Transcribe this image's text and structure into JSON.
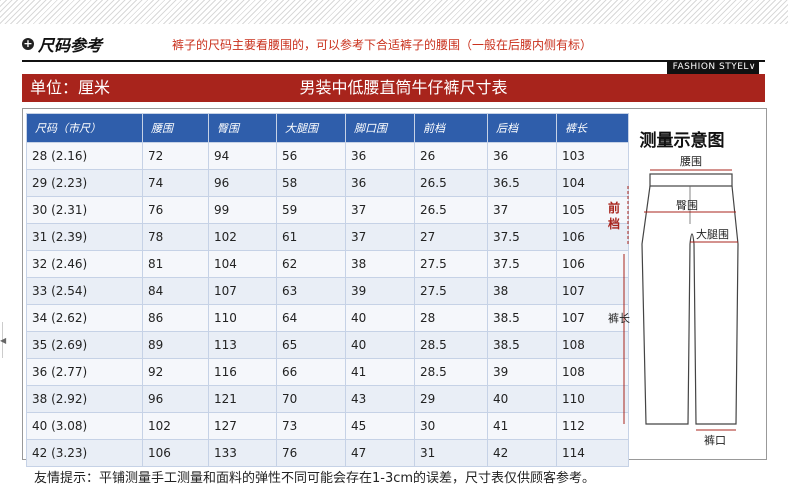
{
  "header": {
    "ref_title": "尺码参考",
    "ref_note": "裤子的尺码主要看腰围的，可以参考下合适裤子的腰围（一般在后腰内侧有标）",
    "fashion_tag": "FASHION STYEL"
  },
  "banner": {
    "unit": "单位：厘米",
    "title": "男装中低腰直筒牛仔裤尺寸表"
  },
  "table": {
    "headers": [
      "尺码（市尺）",
      "腰围",
      "臀围",
      "大腿围",
      "脚口围",
      "前档",
      "后档",
      "裤长"
    ],
    "rows": [
      [
        "28 (2.16)",
        "72",
        "94",
        "56",
        "36",
        "26",
        "36",
        "103"
      ],
      [
        "29 (2.23)",
        "74",
        "96",
        "58",
        "36",
        "26.5",
        "36.5",
        "104"
      ],
      [
        "30 (2.31)",
        "76",
        "99",
        "59",
        "37",
        "26.5",
        "37",
        "105"
      ],
      [
        "31 (2.39)",
        "78",
        "102",
        "61",
        "37",
        "27",
        "37.5",
        "106"
      ],
      [
        "32 (2.46)",
        "81",
        "104",
        "62",
        "38",
        "27.5",
        "37.5",
        "106"
      ],
      [
        "33 (2.54)",
        "84",
        "107",
        "63",
        "39",
        "27.5",
        "38",
        "107"
      ],
      [
        "34 (2.62)",
        "86",
        "110",
        "64",
        "40",
        "28",
        "38.5",
        "107"
      ],
      [
        "35 (2.69)",
        "89",
        "113",
        "65",
        "40",
        "28.5",
        "38.5",
        "108"
      ],
      [
        "36 (2.77)",
        "92",
        "116",
        "66",
        "41",
        "28.5",
        "39",
        "108"
      ],
      [
        "38 (2.92)",
        "96",
        "121",
        "70",
        "43",
        "29",
        "40",
        "110"
      ],
      [
        "40 (3.08)",
        "102",
        "127",
        "73",
        "45",
        "30",
        "41",
        "112"
      ],
      [
        "42 (3.23)",
        "106",
        "133",
        "76",
        "47",
        "31",
        "42",
        "114"
      ]
    ]
  },
  "diagram": {
    "title": "测量示意图",
    "waist": "腰围",
    "hip": "臀围",
    "front_rise": "前档",
    "thigh": "大腿围",
    "length": "裤长",
    "hem": "裤口"
  },
  "footer": {
    "note": "友情提示：平铺测量手工测量和面料的弹性不同可能会存在1-3cm的误差，尺寸表仅供顾客参考。"
  },
  "colors": {
    "banner": "#a8241c",
    "header_bg": "#2f5eab",
    "row_even": "#e9eef6",
    "note_red": "#c9301c"
  }
}
